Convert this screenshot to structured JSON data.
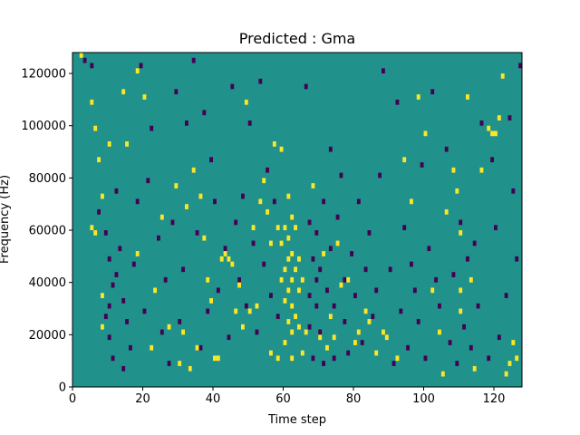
{
  "chart_data": {
    "type": "heatmap",
    "title": "Predicted : Gma",
    "xlabel": "Time step",
    "ylabel": "Frequency (Hz)",
    "xlim": [
      0,
      128
    ],
    "ylim": [
      0,
      128000
    ],
    "xticks": [
      0,
      20,
      40,
      60,
      80,
      100,
      120
    ],
    "yticks": [
      0,
      20000,
      40000,
      60000,
      80000,
      100000,
      120000
    ],
    "grid": false,
    "colormap": "viridis",
    "colors": {
      "background": "#21918c",
      "low": "#440154",
      "high": "#fde725"
    },
    "cells_note_units": "x = time step index, y = frequency in Hz; value 0 = low (purple), 1 = high (yellow), background = mid (teal)",
    "high_cells": [
      [
        2,
        126000
      ],
      [
        5,
        108000
      ],
      [
        5,
        60000
      ],
      [
        6,
        58000
      ],
      [
        6,
        98000
      ],
      [
        7,
        86000
      ],
      [
        8,
        72000
      ],
      [
        8,
        34000
      ],
      [
        8,
        22000
      ],
      [
        10,
        92000
      ],
      [
        14,
        112000
      ],
      [
        15,
        92000
      ],
      [
        18,
        120000
      ],
      [
        18,
        50000
      ],
      [
        20,
        110000
      ],
      [
        22,
        14000
      ],
      [
        23,
        36000
      ],
      [
        25,
        64000
      ],
      [
        27,
        22000
      ],
      [
        29,
        76000
      ],
      [
        30,
        8000
      ],
      [
        31,
        20000
      ],
      [
        32,
        68000
      ],
      [
        33,
        6000
      ],
      [
        34,
        82000
      ],
      [
        35,
        14000
      ],
      [
        36,
        72000
      ],
      [
        37,
        56000
      ],
      [
        38,
        40000
      ],
      [
        39,
        32000
      ],
      [
        40,
        10000
      ],
      [
        41,
        10000
      ],
      [
        42,
        48000
      ],
      [
        43,
        50000
      ],
      [
        44,
        48000
      ],
      [
        45,
        46000
      ],
      [
        46,
        28000
      ],
      [
        47,
        38000
      ],
      [
        48,
        22000
      ],
      [
        49,
        108000
      ],
      [
        50,
        28000
      ],
      [
        51,
        60000
      ],
      [
        52,
        30000
      ],
      [
        53,
        70000
      ],
      [
        54,
        78000
      ],
      [
        55,
        66000
      ],
      [
        56,
        54000
      ],
      [
        56,
        12000
      ],
      [
        57,
        92000
      ],
      [
        58,
        60000
      ],
      [
        58,
        10000
      ],
      [
        59,
        90000
      ],
      [
        59,
        40000
      ],
      [
        59,
        54000
      ],
      [
        60,
        16000
      ],
      [
        60,
        44000
      ],
      [
        60,
        60000
      ],
      [
        60,
        32000
      ],
      [
        61,
        56000
      ],
      [
        61,
        24000
      ],
      [
        61,
        36000
      ],
      [
        61,
        48000
      ],
      [
        61,
        72000
      ],
      [
        62,
        50000
      ],
      [
        62,
        30000
      ],
      [
        62,
        40000
      ],
      [
        62,
        64000
      ],
      [
        62,
        20000
      ],
      [
        62,
        10000
      ],
      [
        63,
        44000
      ],
      [
        63,
        26000
      ],
      [
        63,
        60000
      ],
      [
        64,
        36000
      ],
      [
        64,
        48000
      ],
      [
        64,
        22000
      ],
      [
        65,
        40000
      ],
      [
        65,
        12000
      ],
      [
        66,
        20000
      ],
      [
        68,
        76000
      ],
      [
        70,
        18000
      ],
      [
        71,
        50000
      ],
      [
        72,
        14000
      ],
      [
        73,
        26000
      ],
      [
        74,
        18000
      ],
      [
        75,
        54000
      ],
      [
        76,
        38000
      ],
      [
        78,
        40000
      ],
      [
        80,
        16000
      ],
      [
        81,
        20000
      ],
      [
        83,
        28000
      ],
      [
        84,
        24000
      ],
      [
        86,
        12000
      ],
      [
        88,
        20000
      ],
      [
        89,
        18000
      ],
      [
        92,
        10000
      ],
      [
        94,
        86000
      ],
      [
        96,
        70000
      ],
      [
        98,
        110000
      ],
      [
        100,
        96000
      ],
      [
        102,
        36000
      ],
      [
        104,
        20000
      ],
      [
        105,
        4000
      ],
      [
        106,
        66000
      ],
      [
        108,
        82000
      ],
      [
        109,
        74000
      ],
      [
        110,
        58000
      ],
      [
        110,
        36000
      ],
      [
        110,
        28000
      ],
      [
        112,
        110000
      ],
      [
        113,
        40000
      ],
      [
        114,
        6000
      ],
      [
        116,
        82000
      ],
      [
        118,
        98000
      ],
      [
        119,
        96000
      ],
      [
        120,
        96000
      ],
      [
        121,
        102000
      ],
      [
        122,
        118000
      ],
      [
        123,
        4000
      ],
      [
        124,
        8000
      ],
      [
        125,
        16000
      ],
      [
        126,
        10000
      ]
    ],
    "low_cells": [
      [
        3,
        124000
      ],
      [
        5,
        122000
      ],
      [
        7,
        66000
      ],
      [
        9,
        58000
      ],
      [
        9,
        26000
      ],
      [
        10,
        48000
      ],
      [
        10,
        30000
      ],
      [
        10,
        18000
      ],
      [
        11,
        38000
      ],
      [
        11,
        10000
      ],
      [
        12,
        74000
      ],
      [
        12,
        42000
      ],
      [
        13,
        52000
      ],
      [
        14,
        32000
      ],
      [
        14,
        6000
      ],
      [
        15,
        24000
      ],
      [
        16,
        14000
      ],
      [
        17,
        46000
      ],
      [
        18,
        70000
      ],
      [
        19,
        122000
      ],
      [
        20,
        28000
      ],
      [
        21,
        78000
      ],
      [
        22,
        98000
      ],
      [
        24,
        56000
      ],
      [
        25,
        20000
      ],
      [
        26,
        40000
      ],
      [
        27,
        8000
      ],
      [
        28,
        62000
      ],
      [
        29,
        112000
      ],
      [
        30,
        24000
      ],
      [
        31,
        44000
      ],
      [
        32,
        100000
      ],
      [
        33,
        6000
      ],
      [
        34,
        124000
      ],
      [
        35,
        58000
      ],
      [
        36,
        14000
      ],
      [
        37,
        104000
      ],
      [
        38,
        28000
      ],
      [
        39,
        86000
      ],
      [
        40,
        70000
      ],
      [
        41,
        36000
      ],
      [
        43,
        52000
      ],
      [
        44,
        18000
      ],
      [
        45,
        114000
      ],
      [
        46,
        62000
      ],
      [
        47,
        40000
      ],
      [
        48,
        72000
      ],
      [
        49,
        30000
      ],
      [
        50,
        100000
      ],
      [
        51,
        54000
      ],
      [
        52,
        20000
      ],
      [
        53,
        116000
      ],
      [
        54,
        46000
      ],
      [
        55,
        82000
      ],
      [
        56,
        34000
      ],
      [
        57,
        70000
      ],
      [
        58,
        26000
      ],
      [
        66,
        114000
      ],
      [
        67,
        62000
      ],
      [
        67,
        34000
      ],
      [
        67,
        22000
      ],
      [
        68,
        48000
      ],
      [
        68,
        10000
      ],
      [
        69,
        40000
      ],
      [
        69,
        30000
      ],
      [
        69,
        58000
      ],
      [
        70,
        44000
      ],
      [
        70,
        20000
      ],
      [
        71,
        70000
      ],
      [
        71,
        8000
      ],
      [
        72,
        36000
      ],
      [
        73,
        90000
      ],
      [
        73,
        52000
      ],
      [
        74,
        10000
      ],
      [
        74,
        30000
      ],
      [
        75,
        64000
      ],
      [
        76,
        80000
      ],
      [
        77,
        40000
      ],
      [
        77,
        24000
      ],
      [
        78,
        12000
      ],
      [
        79,
        50000
      ],
      [
        80,
        34000
      ],
      [
        81,
        70000
      ],
      [
        82,
        16000
      ],
      [
        83,
        44000
      ],
      [
        84,
        58000
      ],
      [
        85,
        26000
      ],
      [
        86,
        36000
      ],
      [
        87,
        80000
      ],
      [
        88,
        120000
      ],
      [
        90,
        44000
      ],
      [
        91,
        8000
      ],
      [
        92,
        108000
      ],
      [
        93,
        28000
      ],
      [
        94,
        60000
      ],
      [
        95,
        14000
      ],
      [
        96,
        46000
      ],
      [
        97,
        36000
      ],
      [
        98,
        24000
      ],
      [
        99,
        84000
      ],
      [
        100,
        10000
      ],
      [
        101,
        52000
      ],
      [
        102,
        112000
      ],
      [
        103,
        40000
      ],
      [
        104,
        30000
      ],
      [
        106,
        90000
      ],
      [
        107,
        16000
      ],
      [
        108,
        42000
      ],
      [
        109,
        8000
      ],
      [
        110,
        62000
      ],
      [
        111,
        22000
      ],
      [
        112,
        48000
      ],
      [
        113,
        14000
      ],
      [
        114,
        54000
      ],
      [
        115,
        30000
      ],
      [
        116,
        100000
      ],
      [
        118,
        10000
      ],
      [
        119,
        86000
      ],
      [
        120,
        60000
      ],
      [
        121,
        18000
      ],
      [
        123,
        34000
      ],
      [
        124,
        102000
      ],
      [
        125,
        74000
      ],
      [
        126,
        48000
      ],
      [
        127,
        122000
      ]
    ]
  }
}
